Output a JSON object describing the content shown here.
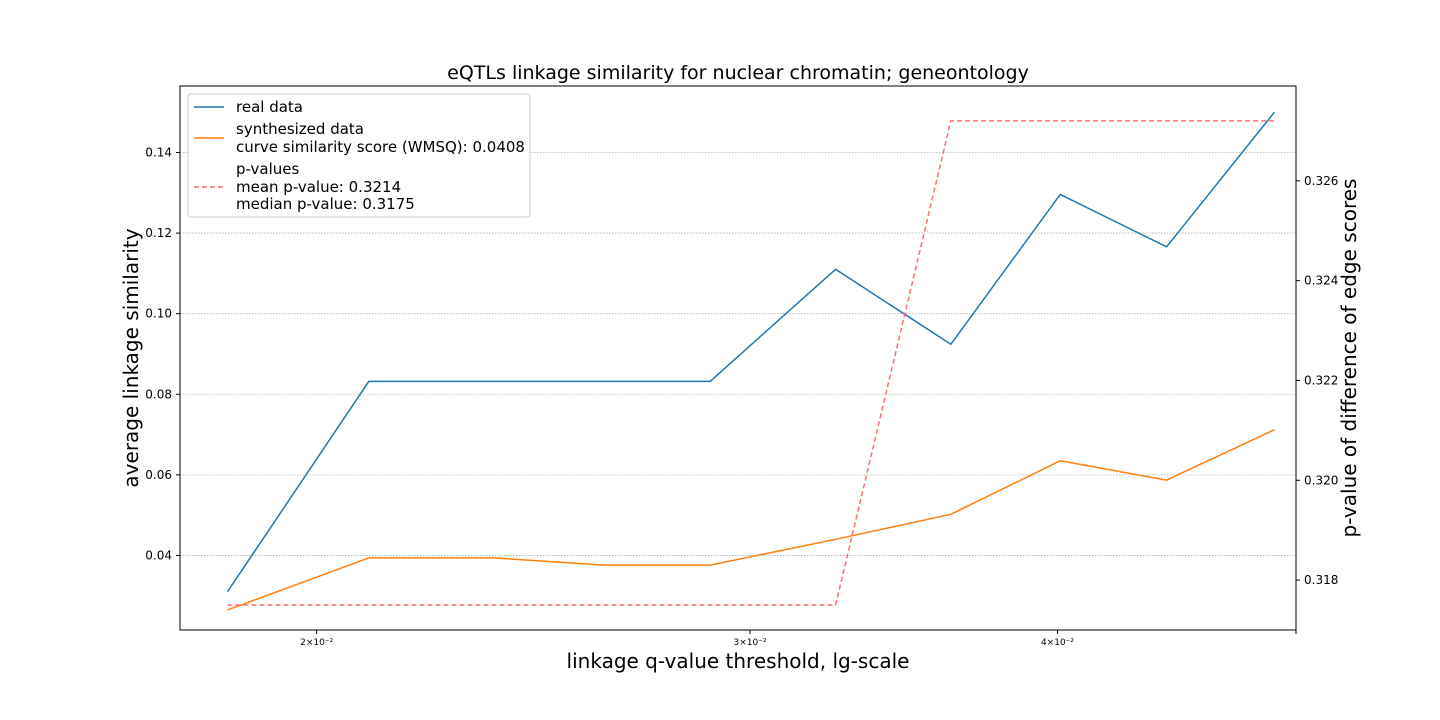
{
  "chart_data": {
    "type": "line",
    "title": "eQTLs linkage similarity for nuclear chromatin; geneontology",
    "xlabel": "linkage q-value threshold, lg-scale",
    "ylabel": "average linkage similarity",
    "y2label": "p-value of difference of edge scores",
    "x_scale": "log",
    "xlim": [
      0.0176,
      0.05
    ],
    "ylim": [
      0.0215,
      0.1565
    ],
    "y2lim": [
      0.317,
      0.3279
    ],
    "x_ticks": [
      {
        "value": 0.02,
        "label": "2×10⁻²"
      },
      {
        "value": 0.03,
        "label": "3×10⁻²"
      },
      {
        "value": 0.04,
        "label": "4×10⁻²"
      },
      {
        "value": 0.05,
        "label": ""
      }
    ],
    "y_ticks": [
      "0.04",
      "0.06",
      "0.08",
      "0.10",
      "0.12",
      "0.14"
    ],
    "y2_ticks": [
      "0.318",
      "0.320",
      "0.322",
      "0.324",
      "0.326"
    ],
    "x": [
      0.0184,
      0.021,
      0.0236,
      0.0262,
      0.0289,
      0.0325,
      0.0362,
      0.0401,
      0.0443,
      0.049
    ],
    "series": [
      {
        "name": "real data",
        "color": "#1f77b4",
        "axis": "left",
        "style": "solid",
        "values": [
          0.031,
          0.0832,
          0.0832,
          0.0832,
          0.0832,
          0.111,
          0.0924,
          0.1296,
          0.1166,
          0.15
        ]
      },
      {
        "name": "synthesized data",
        "color": "#ff7f0e",
        "axis": "left",
        "style": "solid",
        "values": [
          0.0265,
          0.0394,
          0.0394,
          0.0376,
          0.0376,
          0.044,
          0.0502,
          0.0635,
          0.0587,
          0.0712
        ]
      },
      {
        "name": "p-values",
        "color": "#ff6f6f",
        "axis": "right",
        "style": "dashed",
        "values": [
          0.3175,
          0.3175,
          0.3175,
          0.3175,
          0.3175,
          0.3175,
          0.3272,
          0.3272,
          0.3272,
          0.3272
        ]
      }
    ],
    "legend": {
      "placement": "upper-left",
      "entries": [
        {
          "series": 0,
          "lines": [
            "real data"
          ]
        },
        {
          "series": 1,
          "lines": [
            "synthesized data",
            "curve similarity score (WMSQ): 0.0408"
          ]
        },
        {
          "series": 2,
          "lines": [
            "p-values",
            "mean p-value: 0.3214",
            "median p-value: 0.3175"
          ]
        }
      ]
    },
    "grid": "horizontal"
  }
}
